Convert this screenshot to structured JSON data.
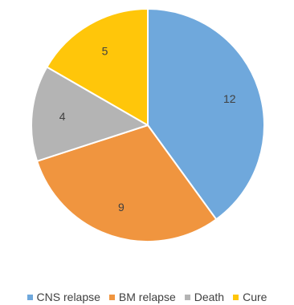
{
  "chart_data": {
    "type": "pie",
    "categories": [
      "CNS relapse",
      "BM relapse",
      "Death",
      "Cure"
    ],
    "values": [
      12,
      9,
      4,
      5
    ],
    "labels": [
      "12",
      "9",
      "4",
      "5"
    ],
    "colors": [
      "#6FA8DC",
      "#F0953F",
      "#B4B4B4",
      "#FFC60A"
    ],
    "start_angle_deg": 0,
    "direction": "clockwise",
    "legend_position": "bottom"
  }
}
